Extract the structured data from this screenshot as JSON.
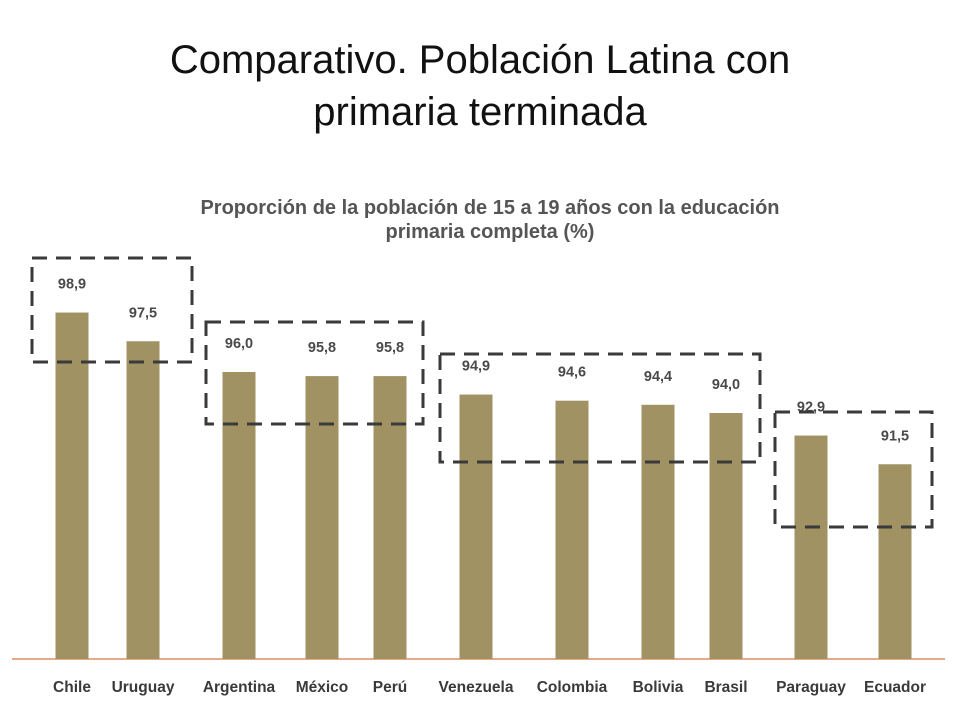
{
  "slide": {
    "title_line1": "Comparativo. Población Latina con",
    "title_line2": "primaria terminada"
  },
  "chart_data": {
    "type": "bar",
    "title_line1": "Proporción de la población de 15 a 19 años con la educación",
    "title_line2": "primaria completa (%)",
    "categories": [
      "Chile",
      "Uruguay",
      "Argentina",
      "México",
      "Perú",
      "Venezuela",
      "Colombia",
      "Bolivia",
      "Brasil",
      "Paraguay",
      "Ecuador"
    ],
    "values": [
      98.9,
      97.5,
      96.0,
      95.8,
      95.8,
      94.9,
      94.6,
      94.4,
      94.0,
      92.9,
      91.5
    ],
    "value_labels": [
      "98,9",
      "97,5",
      "96,0",
      "95,8",
      "95,8",
      "94,9",
      "94,6",
      "94,4",
      "94,0",
      "92,9",
      "91,5"
    ],
    "xlabel": "",
    "ylabel": "",
    "ylim": [
      82.0,
      100.0
    ],
    "grid": false,
    "groups": [
      {
        "members": [
          "Chile",
          "Uruguay"
        ]
      },
      {
        "members": [
          "Argentina",
          "México",
          "Perú"
        ]
      },
      {
        "members": [
          "Venezuela",
          "Colombia",
          "Bolivia",
          "Brasil"
        ]
      },
      {
        "members": [
          "Paraguay",
          "Ecuador"
        ]
      }
    ],
    "colors": {
      "bar": "#a09263",
      "baseline": "#e6a98a",
      "group_box": "#3a3a3a"
    }
  }
}
